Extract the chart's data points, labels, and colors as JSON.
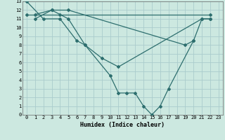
{
  "xlabel": "Humidex (Indice chaleur)",
  "xlim": [
    -0.5,
    23.5
  ],
  "ylim": [
    0,
    13
  ],
  "xticks": [
    0,
    1,
    2,
    3,
    4,
    5,
    6,
    7,
    8,
    9,
    10,
    11,
    12,
    13,
    14,
    15,
    16,
    17,
    18,
    19,
    20,
    21,
    22,
    23
  ],
  "yticks": [
    0,
    1,
    2,
    3,
    4,
    5,
    6,
    7,
    8,
    9,
    10,
    11,
    12,
    13
  ],
  "bg_color": "#cce8e0",
  "grid_color": "#aacccc",
  "line_color": "#2d6e6e",
  "lines": [
    {
      "x": [
        0,
        2,
        4,
        6,
        7,
        10,
        11,
        12,
        13,
        14,
        15,
        16,
        17,
        20,
        21,
        22
      ],
      "y": [
        13,
        11,
        11,
        8.5,
        8,
        4.5,
        2.5,
        2.5,
        2.5,
        1,
        0,
        1,
        3,
        8.5,
        11,
        11
      ]
    },
    {
      "x": [
        1,
        3,
        4,
        5,
        7,
        9,
        11,
        21,
        22
      ],
      "y": [
        11,
        12,
        11.5,
        11,
        8,
        6.5,
        5.5,
        11,
        11
      ]
    },
    {
      "x": [
        1,
        3,
        5,
        19,
        20
      ],
      "y": [
        11.5,
        12,
        12,
        8,
        8.5
      ]
    },
    {
      "x": [
        0,
        22
      ],
      "y": [
        11.5,
        11.5
      ]
    }
  ]
}
